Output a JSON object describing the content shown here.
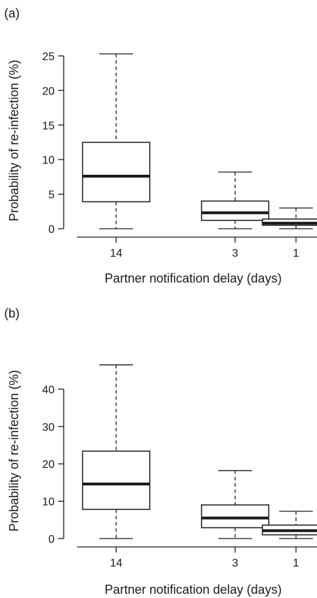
{
  "chart_data": [
    {
      "type": "box",
      "panel_label": "(a)",
      "xlabel": "Partner notification delay (days)",
      "ylabel": "Probability of re-infection (%)",
      "ylim": [
        0,
        25.5
      ],
      "yticks": [
        0,
        5,
        10,
        15,
        20,
        25
      ],
      "categories": [
        "14",
        "3",
        "1"
      ],
      "boxes": [
        {
          "min": 0,
          "q1": 3.9,
          "median": 7.6,
          "q3": 12.5,
          "max": 25.3
        },
        {
          "min": 0,
          "q1": 1.2,
          "median": 2.3,
          "q3": 4.0,
          "max": 8.2
        },
        {
          "min": 0,
          "q1": 0.5,
          "median": 0.8,
          "q3": 1.4,
          "max": 3.0
        }
      ]
    },
    {
      "type": "box",
      "panel_label": "(b)",
      "xlabel": "Partner notification delay (days)",
      "ylabel": "Probability of re-infection (%)",
      "ylim": [
        0,
        47
      ],
      "yticks": [
        0,
        10,
        20,
        30,
        40
      ],
      "categories": [
        "14",
        "3",
        "1"
      ],
      "boxes": [
        {
          "min": 0,
          "q1": 7.8,
          "median": 14.6,
          "q3": 23.4,
          "max": 46.5
        },
        {
          "min": 0,
          "q1": 2.9,
          "median": 5.5,
          "q3": 9.0,
          "max": 18.2
        },
        {
          "min": 0,
          "q1": 1.0,
          "median": 2.1,
          "q3": 3.6,
          "max": 7.3
        }
      ]
    }
  ]
}
